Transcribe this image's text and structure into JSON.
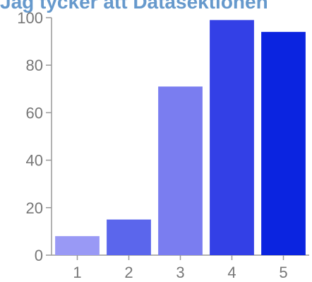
{
  "chart_data": {
    "type": "bar",
    "title": "Jag tycker att Datasektionen",
    "categories": [
      "1",
      "2",
      "3",
      "4",
      "5"
    ],
    "values": [
      8,
      15,
      71,
      99,
      94
    ],
    "bar_colors": [
      "#9999f5",
      "#5b66ec",
      "#7a7df0",
      "#3340e6",
      "#0b24e0"
    ],
    "ylim": [
      0,
      100
    ],
    "yticks": [
      "0",
      "20",
      "40",
      "60",
      "80",
      "100"
    ],
    "xlabel": "",
    "ylabel": "",
    "grid": false,
    "legend": "none",
    "axis_color": "#999999",
    "label_color": "#777777"
  }
}
